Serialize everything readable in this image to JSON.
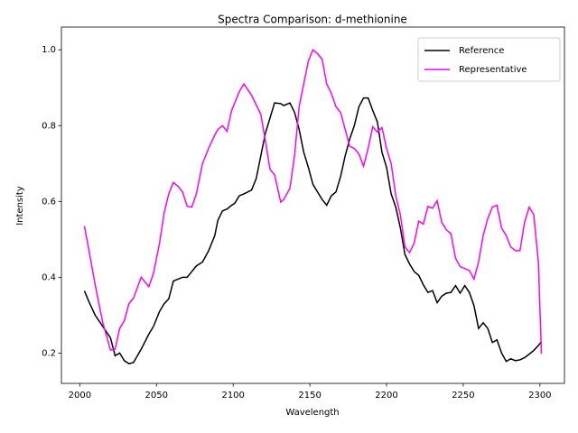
{
  "chart_data": {
    "type": "line",
    "title": "Spectra Comparison: d-methionine",
    "x_label": "Wavelength",
    "y_label": "Intensity",
    "xlim": [
      1988,
      2316
    ],
    "ylim": [
      0.12,
      1.06
    ],
    "xticks": [
      2000,
      2050,
      2100,
      2150,
      2200,
      2250,
      2300
    ],
    "yticks": [
      0.2,
      0.4,
      0.6,
      0.8,
      {
        "value": 1,
        "label": "1.0"
      }
    ],
    "legend": "upper right",
    "x": [
      2003,
      2006,
      2010,
      2015,
      2020,
      2023,
      2026,
      2029,
      2032,
      2035,
      2040,
      2045,
      2048,
      2052,
      2055,
      2058,
      2061,
      2064,
      2067,
      2070,
      2073,
      2076,
      2080,
      2084,
      2088,
      2090,
      2093,
      2096,
      2099,
      2101,
      2104,
      2107,
      2112,
      2115,
      2118,
      2121,
      2124,
      2127,
      2131,
      2133,
      2137,
      2140,
      2143,
      2146,
      2149,
      2152,
      2155,
      2158,
      2161,
      2164,
      2167,
      2170,
      2173,
      2176,
      2179,
      2182,
      2185,
      2188,
      2191,
      2194,
      2197,
      2200,
      2203,
      2206,
      2209,
      2212,
      2215,
      2218,
      2221,
      2224,
      2227,
      2230,
      2233,
      2236,
      2239,
      2242,
      2245,
      2248,
      2251,
      2254,
      2257,
      2260,
      2263,
      2266,
      2269,
      2272,
      2275,
      2278,
      2281,
      2284,
      2287,
      2290,
      2293,
      2296,
      2299,
      2301
    ],
    "series": [
      {
        "name": "Reference",
        "color": "#000000",
        "values": [
          0.364,
          0.335,
          0.3,
          0.27,
          0.24,
          0.193,
          0.2,
          0.18,
          0.172,
          0.175,
          0.21,
          0.25,
          0.27,
          0.31,
          0.33,
          0.343,
          0.39,
          0.395,
          0.4,
          0.4,
          0.415,
          0.43,
          0.44,
          0.47,
          0.51,
          0.55,
          0.575,
          0.58,
          0.59,
          0.595,
          0.615,
          0.62,
          0.63,
          0.66,
          0.72,
          0.78,
          0.82,
          0.86,
          0.858,
          0.853,
          0.86,
          0.835,
          0.79,
          0.73,
          0.69,
          0.645,
          0.625,
          0.605,
          0.59,
          0.615,
          0.625,
          0.665,
          0.72,
          0.765,
          0.8,
          0.85,
          0.873,
          0.873,
          0.84,
          0.81,
          0.73,
          0.69,
          0.62,
          0.585,
          0.53,
          0.46,
          0.435,
          0.415,
          0.405,
          0.38,
          0.36,
          0.365,
          0.333,
          0.35,
          0.358,
          0.36,
          0.378,
          0.358,
          0.378,
          0.36,
          0.325,
          0.265,
          0.28,
          0.265,
          0.228,
          0.235,
          0.2,
          0.178,
          0.185,
          0.18,
          0.182,
          0.188,
          0.197,
          0.207,
          0.22,
          0.23
        ]
      },
      {
        "name": "Representative",
        "color": "#ff00ff",
        "values": [
          0.535,
          0.47,
          0.38,
          0.28,
          0.208,
          0.21,
          0.265,
          0.285,
          0.33,
          0.345,
          0.4,
          0.375,
          0.41,
          0.49,
          0.57,
          0.62,
          0.65,
          0.64,
          0.625,
          0.587,
          0.585,
          0.62,
          0.7,
          0.74,
          0.775,
          0.79,
          0.8,
          0.785,
          0.84,
          0.86,
          0.89,
          0.91,
          0.88,
          0.855,
          0.83,
          0.76,
          0.685,
          0.67,
          0.598,
          0.605,
          0.635,
          0.72,
          0.85,
          0.91,
          0.97,
          1.0,
          0.99,
          0.975,
          0.91,
          0.885,
          0.85,
          0.835,
          0.79,
          0.745,
          0.74,
          0.725,
          0.693,
          0.74,
          0.797,
          0.783,
          0.795,
          0.74,
          0.7,
          0.615,
          0.565,
          0.48,
          0.465,
          0.49,
          0.548,
          0.54,
          0.587,
          0.582,
          0.602,
          0.545,
          0.525,
          0.515,
          0.45,
          0.428,
          0.423,
          0.418,
          0.395,
          0.44,
          0.51,
          0.555,
          0.585,
          0.59,
          0.53,
          0.51,
          0.48,
          0.47,
          0.47,
          0.545,
          0.585,
          0.565,
          0.44,
          0.198
        ]
      }
    ]
  }
}
